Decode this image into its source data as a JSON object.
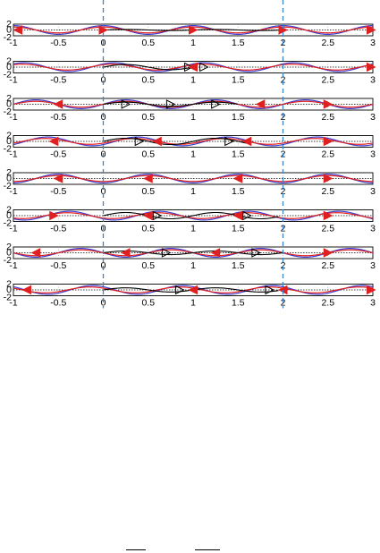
{
  "chart_data": {
    "type": "line",
    "panel_count": 8,
    "xlim": [
      -1,
      3
    ],
    "ylim": [
      -2,
      2
    ],
    "x_ticks": [
      -1,
      -0.5,
      0,
      0.5,
      1,
      1.5,
      2,
      2.5,
      3
    ],
    "x_tick_labels": [
      "-1",
      "-0.5",
      "0",
      "0.5",
      "1",
      "1.5",
      "2",
      "2.5",
      "3"
    ],
    "y_tick_labels": [
      "2",
      "0",
      "-2"
    ],
    "grid": true,
    "marker_lines_x": [
      0,
      2
    ],
    "colors": {
      "blue_series": "#3b3bd0",
      "red_series": "#e02020",
      "black_series": "#000000",
      "marker_lines": "#3b82c8",
      "dotted_zero": "#000000"
    },
    "series_description": {
      "blue_series": "cosine wave, amplitude ~1.5, period 1",
      "red_series": "cosine wave, amplitude ~1, period 1, with arrow markers",
      "black_series": "traveling pulse segment inside [0,2] that shifts per panel"
    },
    "panels": [
      {
        "blue_phase": 0.0,
        "red_phase": 0.0,
        "black_range": [
          0.0,
          2.0
        ],
        "black_amp": 0.2,
        "arrows": [
          [
            -0.95,
            "left",
            "red"
          ],
          [
            0.0,
            "right",
            "red"
          ],
          [
            1.0,
            "right",
            "red"
          ],
          [
            2.0,
            "right",
            "red"
          ],
          [
            2.98,
            "right",
            "red"
          ]
        ]
      },
      {
        "blue_phase": 0.12,
        "red_phase": 0.1,
        "black_range": [
          0.0,
          1.05
        ],
        "black_amp": 1.0,
        "arrows": [
          [
            0.95,
            "right",
            "black"
          ],
          [
            1.0,
            "left",
            "red"
          ],
          [
            1.12,
            "right",
            "black"
          ],
          [
            2.98,
            "right",
            "red"
          ]
        ]
      },
      {
        "blue_phase": 0.25,
        "red_phase": 0.25,
        "black_range": [
          0.0,
          1.5
        ],
        "black_amp": 0.8,
        "arrows": [
          [
            -0.5,
            "left",
            "red"
          ],
          [
            0.25,
            "right",
            "black"
          ],
          [
            0.75,
            "right",
            "black"
          ],
          [
            1.25,
            "right",
            "black"
          ],
          [
            1.75,
            "left",
            "red"
          ],
          [
            2.5,
            "right",
            "red"
          ]
        ]
      },
      {
        "blue_phase": 0.38,
        "red_phase": 0.35,
        "black_range": [
          0.0,
          1.6
        ],
        "black_amp": 1.2,
        "arrows": [
          [
            -0.55,
            "left",
            "red"
          ],
          [
            0.4,
            "right",
            "black"
          ],
          [
            0.6,
            "left",
            "red"
          ],
          [
            1.4,
            "right",
            "black"
          ],
          [
            1.6,
            "left",
            "red"
          ],
          [
            2.5,
            "right",
            "red"
          ]
        ]
      },
      {
        "blue_phase": 0.5,
        "red_phase": 0.5,
        "black_range": [
          0.0,
          0.0
        ],
        "black_amp": 0.0,
        "arrows": [
          [
            -0.5,
            "left",
            "red"
          ],
          [
            0.5,
            "left",
            "red"
          ],
          [
            1.5,
            "left",
            "red"
          ],
          [
            2.5,
            "right",
            "red"
          ]
        ]
      },
      {
        "blue_phase": 0.62,
        "red_phase": 0.6,
        "black_range": [
          0.0,
          1.95
        ],
        "black_amp": 1.2,
        "arrows": [
          [
            -0.55,
            "right",
            "red"
          ],
          [
            0.5,
            "left",
            "red"
          ],
          [
            0.6,
            "right",
            "black"
          ],
          [
            1.5,
            "left",
            "red"
          ],
          [
            1.6,
            "right",
            "black"
          ],
          [
            2.5,
            "right",
            "red"
          ]
        ]
      },
      {
        "blue_phase": 0.75,
        "red_phase": 0.75,
        "black_range": [
          0.0,
          2.0
        ],
        "black_amp": 0.7,
        "arrows": [
          [
            -0.75,
            "left",
            "red"
          ],
          [
            0.25,
            "left",
            "red"
          ],
          [
            0.7,
            "right",
            "black"
          ],
          [
            1.25,
            "left",
            "red"
          ],
          [
            1.7,
            "right",
            "black"
          ],
          [
            2.5,
            "right",
            "red"
          ]
        ]
      },
      {
        "blue_phase": 0.88,
        "red_phase": 0.85,
        "black_range": [
          0.0,
          1.95
        ],
        "black_amp": 0.8,
        "arrows": [
          [
            -0.85,
            "left",
            "red"
          ],
          [
            0.85,
            "right",
            "black"
          ],
          [
            1.0,
            "left",
            "red"
          ],
          [
            1.85,
            "right",
            "black"
          ],
          [
            2.0,
            "left",
            "red"
          ],
          [
            2.98,
            "right",
            "red"
          ]
        ]
      }
    ]
  }
}
